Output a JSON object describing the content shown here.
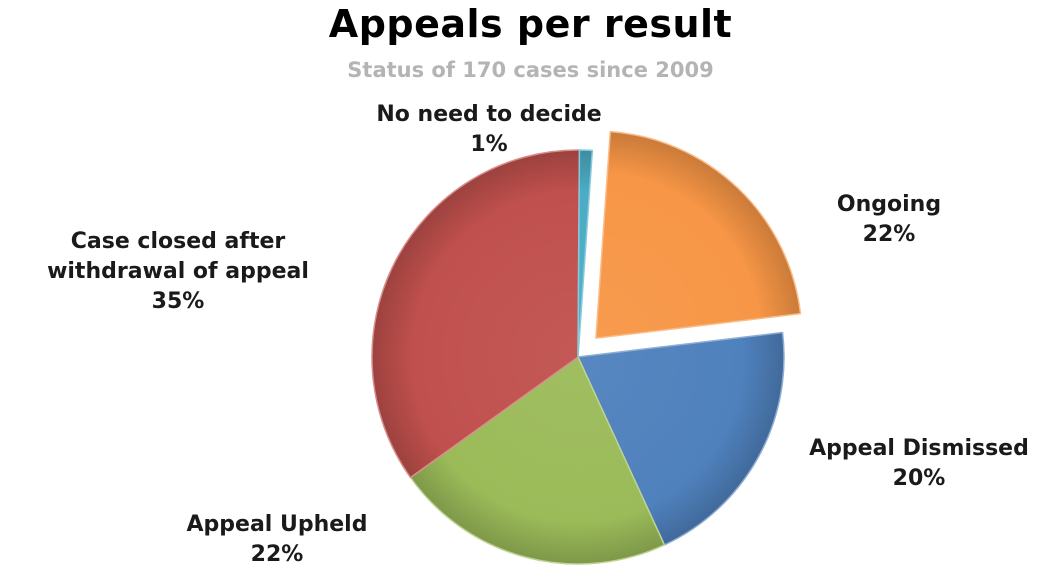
{
  "chart": {
    "title": "Appeals per result",
    "subtitle": "Status of 170 cases since 2009"
  },
  "chart_data": {
    "type": "pie",
    "title": "Appeals per result",
    "subtitle": "Status of 170 cases since 2009",
    "categories": [
      "Ongoing",
      "Appeal Dismissed",
      "Appeal Upheld",
      "Case closed after withdrawal of appeal",
      "No need to decide"
    ],
    "values": [
      22,
      20,
      22,
      35,
      1
    ],
    "value_labels": [
      "22%",
      "20%",
      "22%",
      "35%",
      "1%"
    ],
    "label_lines": [
      [
        "Ongoing"
      ],
      [
        "Appeal Dismissed"
      ],
      [
        "Appeal Upheld"
      ],
      [
        "Case closed after",
        "withdrawal of appeal"
      ],
      [
        "No need to decide"
      ]
    ],
    "colors": [
      "#f79646",
      "#4f81bd",
      "#9bbb59",
      "#c0504d",
      "#4bacc6"
    ],
    "exploded": "Ongoing",
    "legend": "none",
    "labels_placement": "outside"
  }
}
